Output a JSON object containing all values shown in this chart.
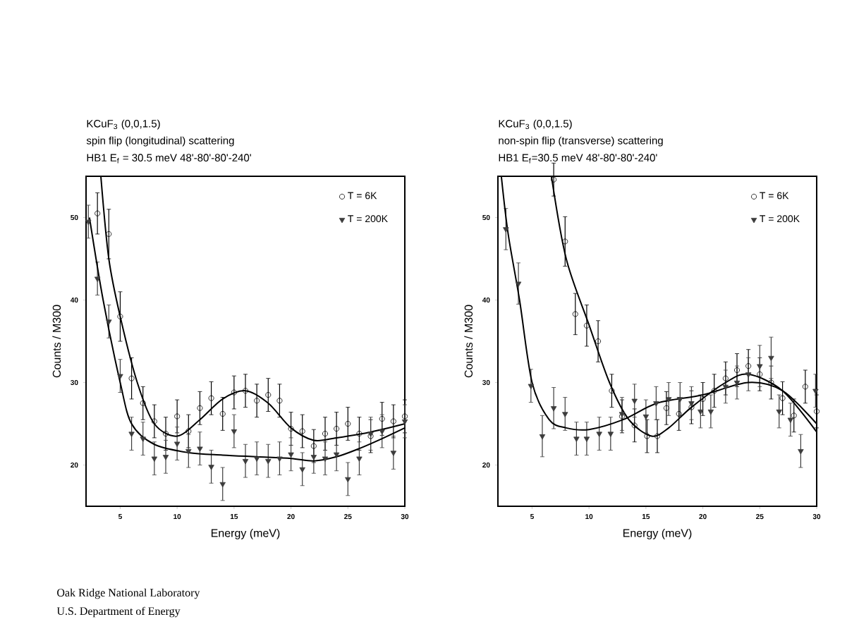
{
  "chart_data": [
    {
      "type": "scatter",
      "title": "KCuF$_{3}$  (0,0,1.5)",
      "subtitle": "spin flip (longitudinal) scattering",
      "xlabel": "Energy (meV)",
      "ylabel": "Counts / M300",
      "annotations": [
        "HB1  E$_{f}$ = 30.5 meV  48'-80'-80'-240'",
        "Oak Ridge National Laboratory",
        "U.S. Department of Energy"
      ],
      "xlim": [
        2,
        30
      ],
      "ylim": [
        15,
        55
      ],
      "xticks": [
        5,
        10,
        15,
        20,
        25,
        30
      ],
      "yticks": [
        20,
        30,
        40,
        50
      ],
      "legend": "top right",
      "series": [
        {
          "name": "T = 6K",
          "color": "#000000",
          "marker": "circle",
          "x": [
            3,
            4,
            5,
            6,
            7,
            8,
            9,
            10,
            11,
            12,
            13,
            14,
            15,
            16,
            17,
            18,
            19,
            20,
            21,
            22,
            23,
            24,
            25,
            26,
            27,
            28,
            29,
            30
          ],
          "values": [
            50.5,
            48,
            38,
            30.5,
            27.5,
            25.3,
            23.8,
            25.9,
            24.1,
            26.9,
            28.1,
            26.2,
            28.8,
            29,
            27.8,
            28.5,
            27.8,
            24.4,
            24.1,
            22.3,
            23.8,
            24.4,
            25,
            23.8,
            23.5,
            25.6,
            25.3,
            25.9
          ],
          "errors": [
            2.5,
            3,
            3,
            2.5,
            2,
            2,
            2,
            2,
            2,
            2,
            2,
            2,
            2,
            2,
            2,
            2,
            2,
            2,
            2,
            2,
            2,
            2,
            2,
            2,
            2,
            2,
            2,
            2
          ]
        },
        {
          "name": "T = 200K",
          "color": "#3c3c3c",
          "marker": "triangle",
          "x": [
            2.2,
            3,
            4,
            5,
            6,
            7,
            8,
            9,
            10,
            11,
            12,
            13,
            14,
            15,
            16,
            17,
            18,
            19,
            20,
            21,
            22,
            23,
            24,
            25,
            26,
            27,
            28,
            29,
            30
          ],
          "values": [
            49.5,
            42.6,
            37.4,
            30.8,
            23.8,
            23.2,
            20.8,
            21,
            22.6,
            21.7,
            22,
            19.8,
            17.7,
            24.1,
            20.5,
            20.8,
            20.5,
            20.8,
            21.3,
            19.5,
            21,
            20.8,
            21.3,
            18.3,
            20.8,
            23.8,
            24.1,
            21.5,
            25.3
          ],
          "errors": [
            2,
            2,
            2,
            2,
            2,
            2,
            2,
            2,
            2,
            2,
            2,
            2,
            2,
            2,
            2,
            2,
            2,
            2,
            2,
            2,
            2,
            2,
            2,
            2,
            2,
            2,
            2,
            2,
            2
          ]
        },
        {
          "type": "line",
          "color": "#000000",
          "marker": "none",
          "x": [
            3.3,
            4,
            5,
            6.5,
            8,
            10,
            12,
            14,
            16,
            18,
            20,
            22,
            24,
            27,
            30
          ],
          "values": [
            55,
            45,
            38,
            30,
            25,
            23.5,
            25.5,
            28,
            29,
            27.5,
            24.5,
            23,
            23.3,
            24,
            25
          ]
        },
        {
          "type": "line",
          "color": "#000000",
          "marker": "none",
          "x": [
            2.3,
            3.5,
            5,
            6,
            8,
            11,
            14,
            17,
            20,
            22,
            24,
            26,
            28,
            30
          ],
          "values": [
            50,
            40,
            30,
            25,
            22.5,
            21.5,
            21.2,
            21,
            20.8,
            20.5,
            21,
            22,
            23.2,
            24.5
          ]
        }
      ]
    },
    {
      "type": "scatter",
      "title": "KCuF$_{3}$  (0,0,1.5)",
      "subtitle": "non-spin flip (transverse) scattering",
      "xlabel": "Energy (meV)",
      "ylabel": "Counts / M300",
      "annotations": [
        "HB1  E$_{f}$=30.5 meV  48'-80'-80'-240'"
      ],
      "xlim": [
        2,
        30
      ],
      "ylim": [
        15,
        55
      ],
      "xticks": [
        5,
        10,
        15,
        20,
        25,
        30
      ],
      "yticks": [
        20,
        30,
        40,
        50
      ],
      "legend": "top right",
      "series": [
        {
          "name": "T = 6K",
          "color": "#000000",
          "marker": "circle",
          "x": [
            6.9,
            7.9,
            8.8,
            9.8,
            10.8,
            12,
            12.9,
            14,
            15.1,
            16,
            16.8,
            17.9,
            19,
            20,
            21,
            22,
            23,
            24,
            25,
            26,
            27,
            28,
            29,
            30
          ],
          "values": [
            54.6,
            47.1,
            38.3,
            36.9,
            35,
            29,
            25.9,
            24.8,
            23.5,
            23.5,
            26.9,
            26.2,
            27,
            28,
            29,
            30.5,
            31.5,
            32,
            31,
            30,
            28.1,
            26,
            29.5,
            26.5
          ],
          "errors": [
            2,
            3,
            2.5,
            2.5,
            2.5,
            2,
            2,
            2,
            2,
            2,
            2,
            2,
            2,
            2,
            2,
            2,
            2,
            2,
            2,
            2,
            2,
            2,
            2,
            2
          ]
        },
        {
          "name": "T = 200K",
          "color": "#3c3c3c",
          "marker": "triangle",
          "x": [
            2.7,
            3.8,
            4.9,
            5.9,
            6.9,
            7.9,
            8.9,
            9.8,
            10.9,
            11.9,
            12.9,
            14,
            15,
            15.9,
            17,
            18,
            19,
            19.8,
            20.7,
            22,
            23,
            24,
            25,
            26,
            26.7,
            27.7,
            28.6,
            29.9
          ],
          "values": [
            48.6,
            42,
            29.6,
            23.5,
            26.9,
            26.2,
            23.2,
            23.2,
            23.8,
            23.8,
            26.2,
            27.8,
            25.9,
            27.5,
            28,
            28,
            27.5,
            26.5,
            26.5,
            29.5,
            30,
            31,
            32,
            33,
            26.5,
            25.5,
            21.7,
            29
          ],
          "errors": [
            2.5,
            2.5,
            2,
            2.5,
            2.5,
            2,
            2,
            2,
            2,
            2,
            2,
            2,
            2,
            2,
            2,
            2,
            2,
            2,
            2,
            2,
            2,
            2,
            2.5,
            2.5,
            2,
            2,
            2,
            2
          ]
        },
        {
          "type": "line",
          "color": "#000000",
          "marker": "none",
          "x": [
            6.7,
            8,
            10,
            11.8,
            13.5,
            15.5,
            17,
            19,
            22,
            24,
            27,
            30
          ],
          "values": [
            55,
            45,
            37,
            30,
            25.5,
            23.5,
            24.5,
            27,
            30,
            31,
            29,
            24
          ]
        },
        {
          "type": "line",
          "color": "#000000",
          "marker": "none",
          "x": [
            2.3,
            2.9,
            3.9,
            5,
            6.5,
            8,
            10,
            13,
            16,
            20,
            24,
            27,
            30
          ],
          "values": [
            55,
            48,
            40,
            30,
            25.5,
            24.5,
            24.3,
            25.5,
            27.5,
            28.5,
            30,
            29,
            25
          ]
        }
      ]
    }
  ]
}
